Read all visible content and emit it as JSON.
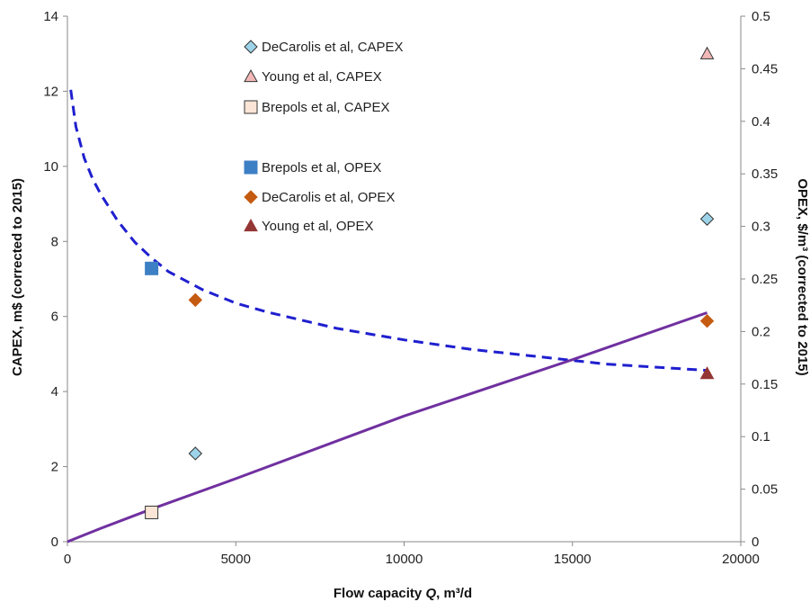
{
  "chart_data": {
    "type": "scatter",
    "x_axis": {
      "label_prefix": "Flow capacity ",
      "label_var": "Q",
      "label_suffix": ", m³/d",
      "min": 0,
      "max": 20000,
      "ticks": [
        0,
        5000,
        10000,
        15000,
        20000
      ]
    },
    "y_left": {
      "label": "CAPEX, m$ (corrected to 2015)",
      "min": 0,
      "max": 14,
      "ticks": [
        0,
        2,
        4,
        6,
        8,
        10,
        12,
        14
      ]
    },
    "y_right": {
      "label": "OPEX, $/m³ (corrected to 2015)",
      "min": 0,
      "max": 0.5,
      "ticks": [
        "0",
        "0.05",
        "0.1",
        "0.15",
        "0.2",
        "0.25",
        "0.3",
        "0.35",
        "0.4",
        "0.45",
        "0.5"
      ]
    },
    "series": [
      {
        "name": "DeCarolis et al, CAPEX",
        "axis": "left",
        "marker": "diamond",
        "fill": "#9dd3e8",
        "stroke": "#333333",
        "points": [
          [
            3800,
            2.35
          ],
          [
            19000,
            8.6
          ]
        ]
      },
      {
        "name": "Young et al, CAPEX",
        "axis": "left",
        "marker": "triangle",
        "fill": "#f2b8b8",
        "stroke": "#333333",
        "points": [
          [
            19000,
            13.0
          ]
        ]
      },
      {
        "name": "Brepols et al, CAPEX",
        "axis": "left",
        "marker": "square",
        "fill": "#fbe5d6",
        "stroke": "#333333",
        "points": [
          [
            2500,
            0.78
          ]
        ]
      },
      {
        "name": "Brepols et al, OPEX",
        "axis": "right",
        "marker": "square",
        "fill": "#3d7fc4",
        "stroke": "#3d7fc4",
        "points": [
          [
            2500,
            0.26
          ]
        ]
      },
      {
        "name": "DeCarolis et al, OPEX",
        "axis": "right",
        "marker": "diamond",
        "fill": "#c55a11",
        "stroke": "#c55a11",
        "points": [
          [
            3800,
            0.23
          ],
          [
            19000,
            0.21
          ]
        ]
      },
      {
        "name": "Young et al, OPEX",
        "axis": "right",
        "marker": "triangle",
        "fill": "#943634",
        "stroke": "#943634",
        "points": [
          [
            19000,
            0.16
          ]
        ]
      }
    ],
    "curves": [
      {
        "kind": "opex-fit",
        "axis": "right",
        "style": "dashed",
        "color": "#1f1fcf",
        "points": [
          [
            100,
            0.43
          ],
          [
            250,
            0.395
          ],
          [
            500,
            0.365
          ],
          [
            750,
            0.345
          ],
          [
            1000,
            0.33
          ],
          [
            1500,
            0.305
          ],
          [
            2000,
            0.285
          ],
          [
            2500,
            0.27
          ],
          [
            3000,
            0.257
          ],
          [
            4000,
            0.24
          ],
          [
            5000,
            0.227
          ],
          [
            6000,
            0.218
          ],
          [
            8000,
            0.203
          ],
          [
            10000,
            0.192
          ],
          [
            12000,
            0.183
          ],
          [
            14000,
            0.176
          ],
          [
            16000,
            0.169
          ],
          [
            18000,
            0.165
          ],
          [
            19000,
            0.163
          ]
        ]
      },
      {
        "kind": "capex-fit",
        "axis": "left",
        "style": "solid",
        "color": "#7030a0",
        "points": [
          [
            0,
            0.0
          ],
          [
            500,
            0.18
          ],
          [
            1000,
            0.36
          ],
          [
            2500,
            0.87
          ],
          [
            5000,
            1.68
          ],
          [
            10000,
            3.35
          ],
          [
            15000,
            4.85
          ],
          [
            19000,
            6.1
          ]
        ]
      }
    ],
    "legend_position": "top-center",
    "grid": false
  }
}
